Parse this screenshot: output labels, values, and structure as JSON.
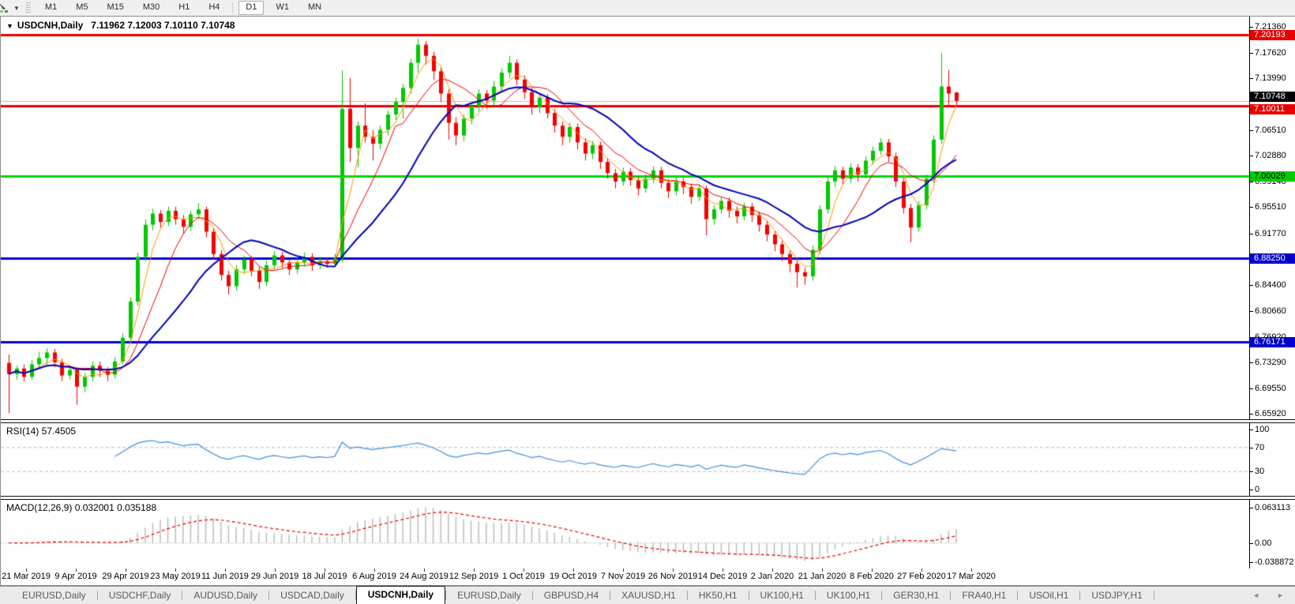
{
  "toolbar": {
    "timeframes": [
      {
        "label": "M1",
        "active": false
      },
      {
        "label": "M5",
        "active": false
      },
      {
        "label": "M15",
        "active": false
      },
      {
        "label": "M30",
        "active": false
      },
      {
        "label": "H1",
        "active": false
      },
      {
        "label": "H4",
        "active": false
      },
      {
        "label": "D1",
        "active": true
      },
      {
        "label": "W1",
        "active": false
      },
      {
        "label": "MN",
        "active": false
      }
    ],
    "dropdown_caret": "▼"
  },
  "chart": {
    "title_marker": "▼",
    "symbol": "USDCNH,Daily",
    "quote": "7.11962 7.12003 7.10110 7.10748",
    "price_axis_labels": [
      "7.21360",
      "7.17620",
      "7.13990",
      "7.06510",
      "7.02880",
      "6.99140",
      "6.95510",
      "6.91770",
      "6.84400",
      "6.80660",
      "6.76920",
      "6.73290",
      "6.69550",
      "6.65920"
    ],
    "price_badges": [
      {
        "value": "7.20193",
        "type": "red",
        "dy": 0
      },
      {
        "value": "7.10748",
        "type": "black",
        "dy": -6
      },
      {
        "value": "7.10011",
        "type": "red",
        "dy": 4
      },
      {
        "value": "7.00029",
        "type": "green",
        "dy": 0
      },
      {
        "value": "6.88250",
        "type": "blue",
        "dy": 0
      },
      {
        "value": "6.76171",
        "type": "blue",
        "dy": 0
      }
    ],
    "hlines": [
      {
        "price": 7.20193,
        "color": "#ee0000",
        "width": 3
      },
      {
        "price": 7.10011,
        "color": "#ee0000",
        "width": 3
      },
      {
        "price": 7.00029,
        "color": "#00d800",
        "width": 3
      },
      {
        "price": 6.8825,
        "color": "#0000e0",
        "width": 3
      },
      {
        "price": 6.76171,
        "color": "#0000e0",
        "width": 3
      }
    ],
    "current_price": 7.10748,
    "current_price_color": "#c0c0c0"
  },
  "chart_data": {
    "type": "candlestick",
    "title": "USDCNH Daily",
    "ylim": [
      6.6592,
      7.2136
    ],
    "x_tick_labels": [
      "21 Mar 2019",
      "9 Apr 2019",
      "29 Apr 2019",
      "23 May 2019",
      "11 Jun 2019",
      "29 Jun 2019",
      "18 Jul 2019",
      "6 Aug 2019",
      "24 Aug 2019",
      "12 Sep 2019",
      "1 Oct 2019",
      "19 Oct 2019",
      "7 Nov 2019",
      "26 Nov 2019",
      "14 Dec 2019",
      "2 Jan 2020",
      "21 Jan 2020",
      "8 Feb 2020",
      "27 Feb 2020",
      "17 Mar 2020"
    ],
    "bull_color": "#00c800",
    "bear_color": "#f40000",
    "ma_lines": [
      {
        "period": 4,
        "color": "#ff9900",
        "width": 1
      },
      {
        "period": 8,
        "color": "#ee0000",
        "width": 1
      },
      {
        "period": 16,
        "color": "#0000bb",
        "width": 2
      }
    ],
    "candles": [
      [
        6.732,
        6.744,
        6.66,
        6.716
      ],
      [
        6.716,
        6.728,
        6.708,
        6.724
      ],
      [
        6.724,
        6.73,
        6.706,
        6.712
      ],
      [
        6.712,
        6.736,
        6.708,
        6.73
      ],
      [
        6.73,
        6.748,
        6.724,
        6.739
      ],
      [
        6.739,
        6.753,
        6.73,
        6.747
      ],
      [
        6.747,
        6.752,
        6.726,
        6.733
      ],
      [
        6.733,
        6.738,
        6.706,
        6.714
      ],
      [
        6.714,
        6.728,
        6.708,
        6.722
      ],
      [
        6.722,
        6.726,
        6.672,
        6.698
      ],
      [
        6.698,
        6.718,
        6.69,
        6.712
      ],
      [
        6.712,
        6.734,
        6.706,
        6.728
      ],
      [
        6.728,
        6.734,
        6.712,
        6.721
      ],
      [
        6.721,
        6.726,
        6.706,
        6.715
      ],
      [
        6.715,
        6.74,
        6.71,
        6.734
      ],
      [
        6.734,
        6.774,
        6.73,
        6.768
      ],
      [
        6.768,
        6.826,
        6.762,
        6.82
      ],
      [
        6.82,
        6.89,
        6.814,
        6.884
      ],
      [
        6.884,
        6.938,
        6.878,
        6.93
      ],
      [
        6.93,
        6.953,
        6.922,
        6.946
      ],
      [
        6.946,
        6.951,
        6.926,
        6.934
      ],
      [
        6.934,
        6.956,
        6.928,
        6.95
      ],
      [
        6.95,
        6.956,
        6.93,
        6.938
      ],
      [
        6.938,
        6.944,
        6.918,
        6.927
      ],
      [
        6.927,
        6.95,
        6.921,
        6.945
      ],
      [
        6.945,
        6.961,
        6.938,
        6.952
      ],
      [
        6.952,
        6.956,
        6.912,
        6.92
      ],
      [
        6.92,
        6.926,
        6.88,
        6.888
      ],
      [
        6.888,
        6.894,
        6.85,
        6.858
      ],
      [
        6.858,
        6.864,
        6.83,
        6.842
      ],
      [
        6.842,
        6.872,
        6.836,
        6.866
      ],
      [
        6.866,
        6.886,
        6.86,
        6.88
      ],
      [
        6.88,
        6.885,
        6.856,
        6.864
      ],
      [
        6.864,
        6.87,
        6.838,
        6.848
      ],
      [
        6.848,
        6.878,
        6.842,
        6.872
      ],
      [
        6.872,
        6.892,
        6.866,
        6.886
      ],
      [
        6.886,
        6.891,
        6.868,
        6.876
      ],
      [
        6.876,
        6.881,
        6.858,
        6.866
      ],
      [
        6.866,
        6.882,
        6.86,
        6.876
      ],
      [
        6.876,
        6.89,
        6.87,
        6.884
      ],
      [
        6.884,
        6.889,
        6.864,
        6.872
      ],
      [
        6.872,
        6.884,
        6.866,
        6.878
      ],
      [
        6.878,
        6.883,
        6.868,
        6.874
      ],
      [
        6.874,
        6.888,
        6.87,
        6.882
      ],
      [
        6.882,
        7.151,
        6.876,
        7.096
      ],
      [
        7.096,
        7.14,
        7.02,
        7.04
      ],
      [
        7.04,
        7.078,
        7.012,
        7.072
      ],
      [
        7.072,
        7.104,
        7.048,
        7.056
      ],
      [
        7.056,
        7.066,
        7.022,
        7.046
      ],
      [
        7.046,
        7.072,
        7.038,
        7.066
      ],
      [
        7.066,
        7.094,
        7.058,
        7.088
      ],
      [
        7.088,
        7.112,
        7.08,
        7.106
      ],
      [
        7.106,
        7.132,
        7.082,
        7.126
      ],
      [
        7.126,
        7.168,
        7.118,
        7.162
      ],
      [
        7.162,
        7.1963,
        7.148,
        7.188
      ],
      [
        7.188,
        7.193,
        7.16,
        7.172
      ],
      [
        7.172,
        7.178,
        7.138,
        7.15
      ],
      [
        7.15,
        7.156,
        7.106,
        7.118
      ],
      [
        7.118,
        7.124,
        7.052,
        7.076
      ],
      [
        7.076,
        7.084,
        7.044,
        7.058
      ],
      [
        7.058,
        7.088,
        7.05,
        7.082
      ],
      [
        7.082,
        7.106,
        7.074,
        7.1
      ],
      [
        7.1,
        7.124,
        7.092,
        7.118
      ],
      [
        7.118,
        7.123,
        7.096,
        7.108
      ],
      [
        7.108,
        7.136,
        7.1,
        7.128
      ],
      [
        7.128,
        7.154,
        7.12,
        7.148
      ],
      [
        7.148,
        7.172,
        7.14,
        7.162
      ],
      [
        7.162,
        7.167,
        7.13,
        7.138
      ],
      [
        7.138,
        7.144,
        7.11,
        7.12
      ],
      [
        7.12,
        7.126,
        7.088,
        7.098
      ],
      [
        7.098,
        7.118,
        7.09,
        7.112
      ],
      [
        7.112,
        7.117,
        7.082,
        7.09
      ],
      [
        7.09,
        7.096,
        7.062,
        7.072
      ],
      [
        7.072,
        7.078,
        7.044,
        7.056
      ],
      [
        7.056,
        7.076,
        7.048,
        7.07
      ],
      [
        7.07,
        7.075,
        7.038,
        7.048
      ],
      [
        7.048,
        7.054,
        7.022,
        7.032
      ],
      [
        7.032,
        7.05,
        7.024,
        7.044
      ],
      [
        7.044,
        7.049,
        7.01,
        7.02
      ],
      [
        7.02,
        7.026,
        6.996,
        7.004
      ],
      [
        7.004,
        7.01,
        6.982,
        6.992
      ],
      [
        6.992,
        7.012,
        6.986,
        7.006
      ],
      [
        7.006,
        7.011,
        6.986,
        6.994
      ],
      [
        6.994,
        6.999,
        6.972,
        6.982
      ],
      [
        6.982,
        7.002,
        6.976,
        6.996
      ],
      [
        6.996,
        7.014,
        6.99,
        7.008
      ],
      [
        7.008,
        7.013,
        6.982,
        6.99
      ],
      [
        6.99,
        6.995,
        6.968,
        6.978
      ],
      [
        6.978,
        6.998,
        6.972,
        6.992
      ],
      [
        6.992,
        6.997,
        6.974,
        6.984
      ],
      [
        6.984,
        6.989,
        6.96,
        6.97
      ],
      [
        6.97,
        6.988,
        6.964,
        6.982
      ],
      [
        6.982,
        6.986,
        6.915,
        6.938
      ],
      [
        6.938,
        6.958,
        6.93,
        6.952
      ],
      [
        6.952,
        6.97,
        6.946,
        6.964
      ],
      [
        6.964,
        6.969,
        6.94,
        6.95
      ],
      [
        6.95,
        6.956,
        6.932,
        6.942
      ],
      [
        6.942,
        6.962,
        6.936,
        6.956
      ],
      [
        6.956,
        6.961,
        6.934,
        6.944
      ],
      [
        6.944,
        6.949,
        6.92,
        6.93
      ],
      [
        6.93,
        6.935,
        6.906,
        6.916
      ],
      [
        6.916,
        6.921,
        6.892,
        6.902
      ],
      [
        6.902,
        6.907,
        6.878,
        6.888
      ],
      [
        6.888,
        6.893,
        6.862,
        6.874
      ],
      [
        6.874,
        6.88,
        6.84,
        6.862
      ],
      [
        6.862,
        6.868,
        6.844,
        6.856
      ],
      [
        6.856,
        6.9,
        6.85,
        6.894
      ],
      [
        6.894,
        6.958,
        6.888,
        6.952
      ],
      [
        6.952,
        6.998,
        6.946,
        6.992
      ],
      [
        6.992,
        7.014,
        6.984,
        7.008
      ],
      [
        7.008,
        7.013,
        6.988,
        6.996
      ],
      [
        6.996,
        7.018,
        6.99,
        7.012
      ],
      [
        7.012,
        7.017,
        6.992,
        7.002
      ],
      [
        7.002,
        7.028,
        6.996,
        7.022
      ],
      [
        7.022,
        7.042,
        7.016,
        7.036
      ],
      [
        7.036,
        7.054,
        7.03,
        7.048
      ],
      [
        7.048,
        7.053,
        7.02,
        7.028
      ],
      [
        7.028,
        7.033,
        6.984,
        6.992
      ],
      [
        6.992,
        6.997,
        6.946,
        6.954
      ],
      [
        6.954,
        6.96,
        6.905,
        6.926
      ],
      [
        6.926,
        6.964,
        6.92,
        6.958
      ],
      [
        6.958,
        7.002,
        6.952,
        6.996
      ],
      [
        6.996,
        7.058,
        6.99,
        7.052
      ],
      [
        7.052,
        7.176,
        7.046,
        7.128
      ],
      [
        7.128,
        7.152,
        7.098,
        7.118
      ],
      [
        7.1196,
        7.12,
        7.1011,
        7.1075
      ]
    ],
    "indicators": {
      "rsi": {
        "display": "RSI(14) 57.4505",
        "period": 14,
        "levels": [
          100,
          70,
          30,
          0
        ],
        "line_color": "#3e90dd",
        "level_color": "#bdbdbd"
      },
      "macd": {
        "display": "MACD(12,26,9) 0.032001 0.035188",
        "fast": 12,
        "slow": 26,
        "signal": 9,
        "axis_max": "0.063113",
        "axis_zero": "0.00",
        "axis_min": "-0.038872",
        "hist_color": "#b8b8b8",
        "signal_color": "#ee0000"
      }
    }
  },
  "tabs": {
    "items": [
      {
        "label": "EURUSD,Daily",
        "active": false
      },
      {
        "label": "USDCHF,Daily",
        "active": false
      },
      {
        "label": "AUDUSD,Daily",
        "active": false
      },
      {
        "label": "USDCAD,Daily",
        "active": false
      },
      {
        "label": "USDCNH,Daily",
        "active": true
      },
      {
        "label": "EURUSD,Daily",
        "active": false
      },
      {
        "label": "GBPUSD,H4",
        "active": false
      },
      {
        "label": "XAUUSD,H1",
        "active": false
      },
      {
        "label": "HK50,H1",
        "active": false
      },
      {
        "label": "UK100,H1",
        "active": false
      },
      {
        "label": "UK100,H1",
        "active": false
      },
      {
        "label": "GER30,H1",
        "active": false
      },
      {
        "label": "FRA40,H1",
        "active": false
      },
      {
        "label": "USOil,H1",
        "active": false
      },
      {
        "label": "USDJPY,H1",
        "active": false
      }
    ],
    "scroll_left": "◄",
    "scroll_right": "►"
  }
}
